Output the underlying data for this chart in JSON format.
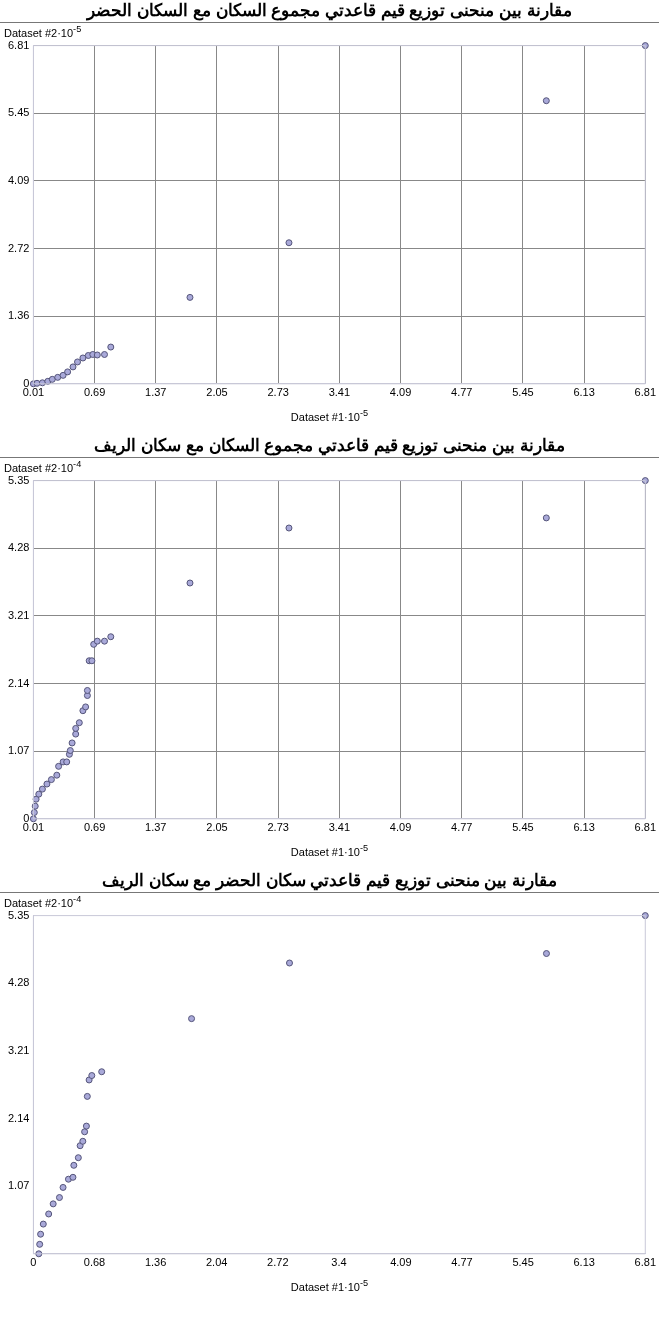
{
  "chart_data": [
    {
      "type": "scatter",
      "title": "مقارنة بين منحنى توزيع قيم قاعدتي مجموع السكان مع السكان الحضر",
      "xlabel": "Dataset #1·10$^{-5}$",
      "ylabel": "Dataset #2·10$^{-5}$",
      "marker": "circle",
      "grid": true,
      "xlim": [
        0.01,
        6.81
      ],
      "xticks": [
        0.01,
        0.69,
        1.37,
        2.05,
        2.73,
        3.41,
        4.09,
        4.77,
        5.45,
        6.13,
        6.81
      ],
      "ylim": [
        0,
        6.81
      ],
      "yticks": [
        0,
        1.36,
        2.72,
        4.09,
        5.45,
        6.81
      ],
      "series": [
        {
          "color": "#a9a9d9",
          "x": [
            0.01,
            0.05,
            0.11,
            0.17,
            0.22,
            0.28,
            0.34,
            0.39,
            0.45,
            0.5,
            0.56,
            0.62,
            0.67,
            0.72,
            0.8,
            0.87,
            1.75,
            2.85,
            5.71,
            6.81
          ],
          "values": [
            0,
            0.01,
            0.02,
            0.05,
            0.09,
            0.13,
            0.17,
            0.24,
            0.34,
            0.44,
            0.52,
            0.57,
            0.59,
            0.58,
            0.59,
            0.74,
            1.74,
            2.84,
            5.7,
            6.81
          ]
        }
      ]
    },
    {
      "type": "scatter",
      "title": "مقارنة بين منحنى توزيع قيم قاعدتي مجموع السكان مع سكان الريف",
      "xlabel": "Dataset #1·10$^{-5}$",
      "ylabel": "Dataset #2·10$^{-4}$",
      "marker": "circle",
      "grid": true,
      "xlim": [
        0.01,
        6.81
      ],
      "xticks": [
        0.01,
        0.69,
        1.37,
        2.05,
        2.73,
        3.41,
        4.09,
        4.77,
        5.45,
        6.13,
        6.81
      ],
      "ylim": [
        0,
        5.35
      ],
      "yticks": [
        0,
        1.07,
        2.14,
        3.21,
        4.28,
        5.35
      ],
      "series": [
        {
          "color": "#a9a9d9",
          "x": [
            0.01,
            0.02,
            0.03,
            0.04,
            0.07,
            0.11,
            0.16,
            0.21,
            0.27,
            0.29,
            0.34,
            0.38,
            0.41,
            0.42,
            0.44,
            0.48,
            0.48,
            0.52,
            0.56,
            0.59,
            0.61,
            0.61,
            0.63,
            0.66,
            0.68,
            0.72,
            0.8,
            0.87,
            1.75,
            2.85,
            5.71,
            6.81
          ],
          "values": [
            0,
            0.1,
            0.2,
            0.31,
            0.39,
            0.47,
            0.55,
            0.62,
            0.69,
            0.83,
            0.9,
            0.9,
            1.02,
            1.08,
            1.2,
            1.34,
            1.43,
            1.52,
            1.71,
            1.77,
            1.95,
            2.03,
            2.5,
            2.5,
            2.76,
            2.81,
            2.81,
            2.88,
            3.73,
            4.6,
            4.76,
            5.35
          ]
        }
      ]
    },
    {
      "type": "scatter",
      "title": "مقارنة بين منحنى توزيع قيم قاعدتي سكان الحضر مع سكان الريف",
      "xlabel": "Dataset #1·10$^{-5}$",
      "ylabel": "Dataset #2·10$^{-4}$",
      "marker": "circle",
      "xlim": [
        0,
        6.81
      ],
      "xticks": [
        0,
        0.68,
        1.36,
        2.04,
        2.72,
        3.4,
        4.09,
        4.77,
        5.45,
        6.13,
        6.81
      ],
      "ylim": [
        0,
        5.35
      ],
      "yticks": [
        1.07,
        2.14,
        3.21,
        4.28,
        5.35
      ],
      "series": [
        {
          "color": "#a9a9d9",
          "x": [
            0.06,
            0.07,
            0.08,
            0.11,
            0.17,
            0.22,
            0.29,
            0.33,
            0.39,
            0.44,
            0.45,
            0.5,
            0.52,
            0.55,
            0.57,
            0.59,
            0.6,
            0.62,
            0.65,
            0.76,
            1.76,
            2.85,
            5.71,
            6.81
          ],
          "values": [
            0,
            0.15,
            0.31,
            0.47,
            0.63,
            0.79,
            0.89,
            1.05,
            1.18,
            1.21,
            1.4,
            1.52,
            1.71,
            1.78,
            1.93,
            2.02,
            2.49,
            2.75,
            2.82,
            2.88,
            3.72,
            4.6,
            4.75,
            5.35
          ]
        }
      ]
    }
  ]
}
